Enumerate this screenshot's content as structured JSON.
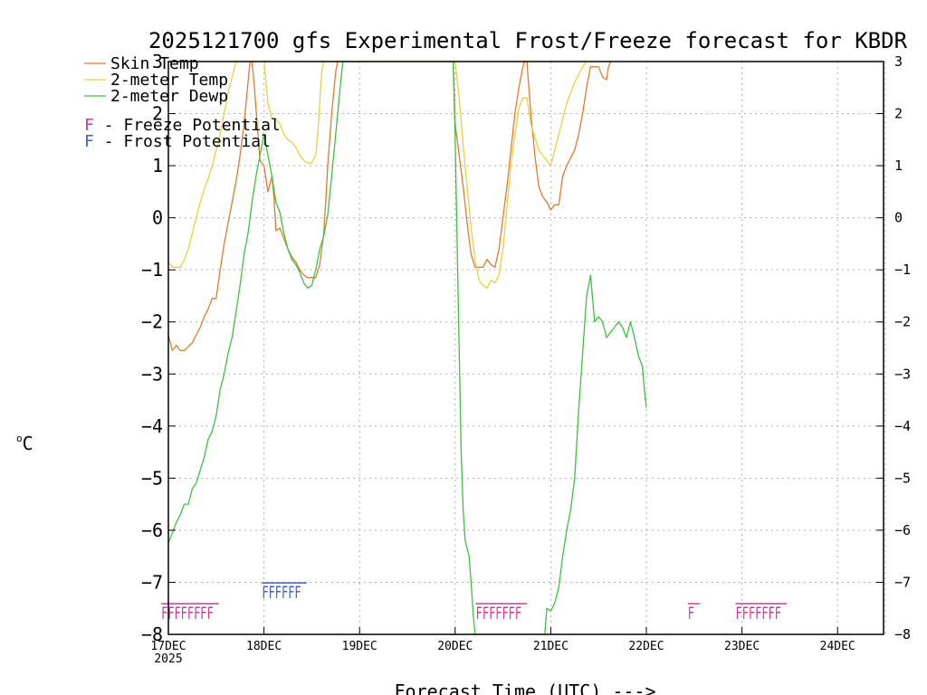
{
  "chart_data": {
    "type": "line",
    "title": "2025121700 gfs Experimental Frost/Freeze forecast for KBDR",
    "xlabel": "Forecast Time (UTC) --->",
    "ylabel": "°C",
    "ylabel_base": "o",
    "ylabel_unit": "C",
    "ylim": [
      -8,
      3
    ],
    "xlim_hours": [
      0,
      180
    ],
    "grid": true,
    "x_ticks": [
      {
        "hour": 0,
        "label": "17DEC",
        "sublabel": "2025"
      },
      {
        "hour": 24,
        "label": "18DEC"
      },
      {
        "hour": 48,
        "label": "19DEC"
      },
      {
        "hour": 72,
        "label": "20DEC"
      },
      {
        "hour": 96,
        "label": "21DEC"
      },
      {
        "hour": 120,
        "label": "22DEC"
      },
      {
        "hour": 144,
        "label": "23DEC"
      },
      {
        "hour": 168,
        "label": "24DEC"
      }
    ],
    "y_ticks": [
      3,
      2,
      1,
      0,
      -1,
      -2,
      -3,
      -4,
      -5,
      -6,
      -7,
      -8
    ],
    "y_tick_labels": [
      "3",
      "2",
      "1",
      "0",
      "−1",
      "−2",
      "−3",
      "−4",
      "−5",
      "−6",
      "−7",
      "−8"
    ],
    "legend": {
      "placement": "top-left",
      "series": [
        "Skin Temp",
        "2-meter Temp",
        "2-meter Dewp"
      ],
      "flags": [
        {
          "letter": "F",
          "text": " - Freeze Potential",
          "color": "#d0389a"
        },
        {
          "letter": "F",
          "text": " - Frost Potential",
          "color": "#4060c0"
        }
      ]
    },
    "series": [
      {
        "name": "Skin Temp",
        "color": "#e07a30",
        "points": [
          [
            0,
            -2.25
          ],
          [
            1,
            -2.55
          ],
          [
            2,
            -2.45
          ],
          [
            3,
            -2.55
          ],
          [
            4,
            -2.55
          ],
          [
            6,
            -2.4
          ],
          [
            8,
            -2.1
          ],
          [
            9,
            -1.9
          ],
          [
            10,
            -1.75
          ],
          [
            11,
            -1.55
          ],
          [
            12,
            -1.55
          ],
          [
            13,
            -1.0
          ],
          [
            14,
            -0.5
          ],
          [
            15,
            -0.1
          ],
          [
            16,
            0.3
          ],
          [
            17,
            0.7
          ],
          [
            18,
            1.2
          ],
          [
            19,
            1.8
          ],
          [
            19.5,
            2.2
          ],
          [
            20,
            2.6
          ],
          [
            20.5,
            3.0
          ],
          [
            21,
            3.0
          ],
          [
            21.5,
            2.6
          ],
          [
            22,
            2.1
          ],
          [
            22.5,
            1.6
          ],
          [
            23,
            1.1
          ],
          [
            24,
            1.0
          ],
          [
            25,
            0.5
          ],
          [
            26,
            0.8
          ],
          [
            26.5,
            0.4
          ],
          [
            27,
            -0.25
          ],
          [
            28,
            -0.2
          ],
          [
            29,
            -0.4
          ],
          [
            30,
            -0.6
          ],
          [
            31,
            -0.75
          ],
          [
            32,
            -0.85
          ],
          [
            33,
            -1.0
          ],
          [
            34,
            -1.1
          ],
          [
            35,
            -1.15
          ],
          [
            36,
            -1.15
          ],
          [
            37,
            -1.15
          ],
          [
            38,
            -0.9
          ],
          [
            39,
            -0.3
          ],
          [
            39.5,
            0.3
          ],
          [
            40,
            1.0
          ],
          [
            41,
            2.0
          ],
          [
            42,
            2.8
          ],
          [
            42.5,
            3.0
          ],
          [
            71.5,
            3.0
          ],
          [
            72,
            1.8
          ],
          [
            73,
            1.2
          ],
          [
            74,
            0.6
          ],
          [
            75,
            -0.1
          ],
          [
            76,
            -0.7
          ],
          [
            77,
            -0.95
          ],
          [
            78,
            -0.95
          ],
          [
            79,
            -0.95
          ],
          [
            80,
            -0.8
          ],
          [
            81,
            -0.9
          ],
          [
            82,
            -0.95
          ],
          [
            83,
            -0.6
          ],
          [
            84,
            0.0
          ],
          [
            85,
            0.6
          ],
          [
            86,
            1.3
          ],
          [
            87,
            2.0
          ],
          [
            88,
            2.5
          ],
          [
            89,
            2.9
          ],
          [
            89.5,
            3.0
          ],
          [
            90,
            3.0
          ],
          [
            91,
            2.0
          ],
          [
            92,
            1.2
          ],
          [
            93,
            0.6
          ],
          [
            94,
            0.4
          ],
          [
            95,
            0.3
          ],
          [
            96,
            0.15
          ],
          [
            97,
            0.25
          ],
          [
            98,
            0.25
          ],
          [
            99,
            0.8
          ],
          [
            100,
            1.0
          ],
          [
            102,
            1.3
          ],
          [
            103,
            1.6
          ],
          [
            104,
            2.0
          ],
          [
            105,
            2.5
          ],
          [
            106,
            2.9
          ],
          [
            108,
            2.9
          ],
          [
            109,
            2.7
          ],
          [
            110,
            2.65
          ],
          [
            110.5,
            2.9
          ],
          [
            111,
            3.0
          ]
        ]
      },
      {
        "name": "2-meter Temp",
        "color": "#e8d040",
        "points": [
          [
            0,
            -0.85
          ],
          [
            1,
            -0.95
          ],
          [
            2,
            -0.95
          ],
          [
            3,
            -0.95
          ],
          [
            4,
            -0.8
          ],
          [
            5,
            -0.6
          ],
          [
            6,
            -0.3
          ],
          [
            7,
            0.0
          ],
          [
            8,
            0.3
          ],
          [
            9,
            0.55
          ],
          [
            10,
            0.75
          ],
          [
            11,
            1.0
          ],
          [
            12,
            1.3
          ],
          [
            13,
            1.6
          ],
          [
            14,
            2.0
          ],
          [
            15,
            2.4
          ],
          [
            16,
            2.7
          ],
          [
            17,
            3.0
          ],
          [
            24,
            3.0
          ],
          [
            25,
            2.2
          ],
          [
            26,
            1.9
          ],
          [
            27,
            1.9
          ],
          [
            28,
            1.8
          ],
          [
            29,
            1.6
          ],
          [
            30,
            1.5
          ],
          [
            31,
            1.45
          ],
          [
            32,
            1.35
          ],
          [
            33,
            1.2
          ],
          [
            34,
            1.1
          ],
          [
            35,
            1.05
          ],
          [
            36,
            1.05
          ],
          [
            37,
            1.2
          ],
          [
            37.5,
            1.6
          ],
          [
            38,
            2.2
          ],
          [
            38.5,
            2.8
          ],
          [
            39,
            3.0
          ],
          [
            72,
            3.0
          ],
          [
            73,
            2.3
          ],
          [
            74,
            1.4
          ],
          [
            75,
            0.6
          ],
          [
            76,
            -0.2
          ],
          [
            77,
            -0.8
          ],
          [
            78,
            -1.2
          ],
          [
            79,
            -1.3
          ],
          [
            80,
            -1.35
          ],
          [
            81,
            -1.2
          ],
          [
            82,
            -1.25
          ],
          [
            83,
            -1.1
          ],
          [
            84,
            -0.6
          ],
          [
            85,
            0.2
          ],
          [
            86,
            1.0
          ],
          [
            87,
            1.6
          ],
          [
            88,
            2.1
          ],
          [
            89,
            2.3
          ],
          [
            90,
            2.3
          ],
          [
            91,
            1.8
          ],
          [
            92,
            1.55
          ],
          [
            93,
            1.3
          ],
          [
            94,
            1.2
          ],
          [
            95,
            1.1
          ],
          [
            96,
            1.0
          ],
          [
            97,
            1.3
          ],
          [
            98,
            1.6
          ],
          [
            99,
            1.9
          ],
          [
            100,
            2.2
          ],
          [
            101,
            2.4
          ],
          [
            102,
            2.6
          ],
          [
            103,
            2.75
          ],
          [
            104,
            2.9
          ],
          [
            105,
            3.0
          ]
        ]
      },
      {
        "name": "2-meter Dewp",
        "color": "#40c040",
        "points": [
          [
            0,
            -6.25
          ],
          [
            1,
            -6.05
          ],
          [
            2,
            -5.85
          ],
          [
            3,
            -5.7
          ],
          [
            4,
            -5.5
          ],
          [
            5,
            -5.5
          ],
          [
            6,
            -5.2
          ],
          [
            7,
            -5.1
          ],
          [
            8,
            -4.85
          ],
          [
            9,
            -4.6
          ],
          [
            10,
            -4.25
          ],
          [
            11,
            -4.1
          ],
          [
            12,
            -3.8
          ],
          [
            13,
            -3.3
          ],
          [
            14,
            -3.0
          ],
          [
            15,
            -2.6
          ],
          [
            16,
            -2.3
          ],
          [
            17,
            -1.8
          ],
          [
            18,
            -1.3
          ],
          [
            19,
            -0.7
          ],
          [
            20,
            -0.3
          ],
          [
            21,
            0.3
          ],
          [
            22,
            0.8
          ],
          [
            23,
            1.2
          ],
          [
            24,
            1.6
          ],
          [
            25,
            1.2
          ],
          [
            26,
            0.8
          ],
          [
            27,
            0.3
          ],
          [
            28,
            0.1
          ],
          [
            29,
            -0.3
          ],
          [
            30,
            -0.6
          ],
          [
            31,
            -0.8
          ],
          [
            32,
            -0.9
          ],
          [
            33,
            -1.05
          ],
          [
            34,
            -1.25
          ],
          [
            35,
            -1.35
          ],
          [
            36,
            -1.3
          ],
          [
            37,
            -1.0
          ],
          [
            38,
            -0.6
          ],
          [
            39,
            -0.35
          ],
          [
            40,
            0.05
          ],
          [
            41,
            0.8
          ],
          [
            42,
            1.6
          ],
          [
            43,
            2.4
          ],
          [
            43.8,
            3.0
          ],
          [
            71.5,
            3.0
          ],
          [
            72,
            1.5
          ],
          [
            72.5,
            -0.5
          ],
          [
            73,
            -2.5
          ],
          [
            73.5,
            -4.5
          ],
          [
            74,
            -5.6
          ],
          [
            74.5,
            -6.2
          ],
          [
            75.5,
            -6.5
          ],
          [
            76,
            -7.0
          ],
          [
            76.5,
            -7.6
          ],
          [
            77,
            -8.0
          ],
          [
            94.5,
            -8.0
          ],
          [
            95,
            -7.5
          ],
          [
            96,
            -7.55
          ],
          [
            97,
            -7.4
          ],
          [
            98,
            -7.1
          ],
          [
            99,
            -6.5
          ],
          [
            100,
            -6.0
          ],
          [
            101,
            -5.6
          ],
          [
            102,
            -5.0
          ],
          [
            103,
            -3.7
          ],
          [
            104,
            -2.6
          ],
          [
            105,
            -1.5
          ],
          [
            106,
            -1.1
          ],
          [
            107,
            -2.0
          ],
          [
            108,
            -1.9
          ],
          [
            109,
            -2.0
          ],
          [
            110,
            -2.3
          ],
          [
            111,
            -2.2
          ],
          [
            112,
            -2.1
          ],
          [
            113,
            -2.0
          ],
          [
            114,
            -2.1
          ],
          [
            115,
            -2.3
          ],
          [
            116,
            -2.0
          ],
          [
            117,
            -2.3
          ],
          [
            118,
            -2.65
          ],
          [
            119,
            -2.85
          ],
          [
            119.5,
            -3.3
          ],
          [
            120,
            -3.65
          ]
        ]
      }
    ],
    "flag_runs": [
      {
        "type": "freeze",
        "color": "#d0389a",
        "start_hour": -1.8,
        "letters": "FFFFFFFF",
        "value": -7.55
      },
      {
        "type": "frost",
        "color": "#4060c0",
        "start_hour": 23.5,
        "letters": "FFFFFF",
        "value": -7.15
      },
      {
        "type": "freeze",
        "color": "#d0389a",
        "start_hour": 77.2,
        "letters": "FFFFFFF",
        "value": -7.55
      },
      {
        "type": "freeze",
        "color": "#d0389a",
        "start_hour": 130.4,
        "letters": "F",
        "value": -7.55
      },
      {
        "type": "freeze",
        "color": "#d0389a",
        "start_hour": 142.4,
        "letters": "FFFFFFF",
        "value": -7.55
      }
    ]
  }
}
